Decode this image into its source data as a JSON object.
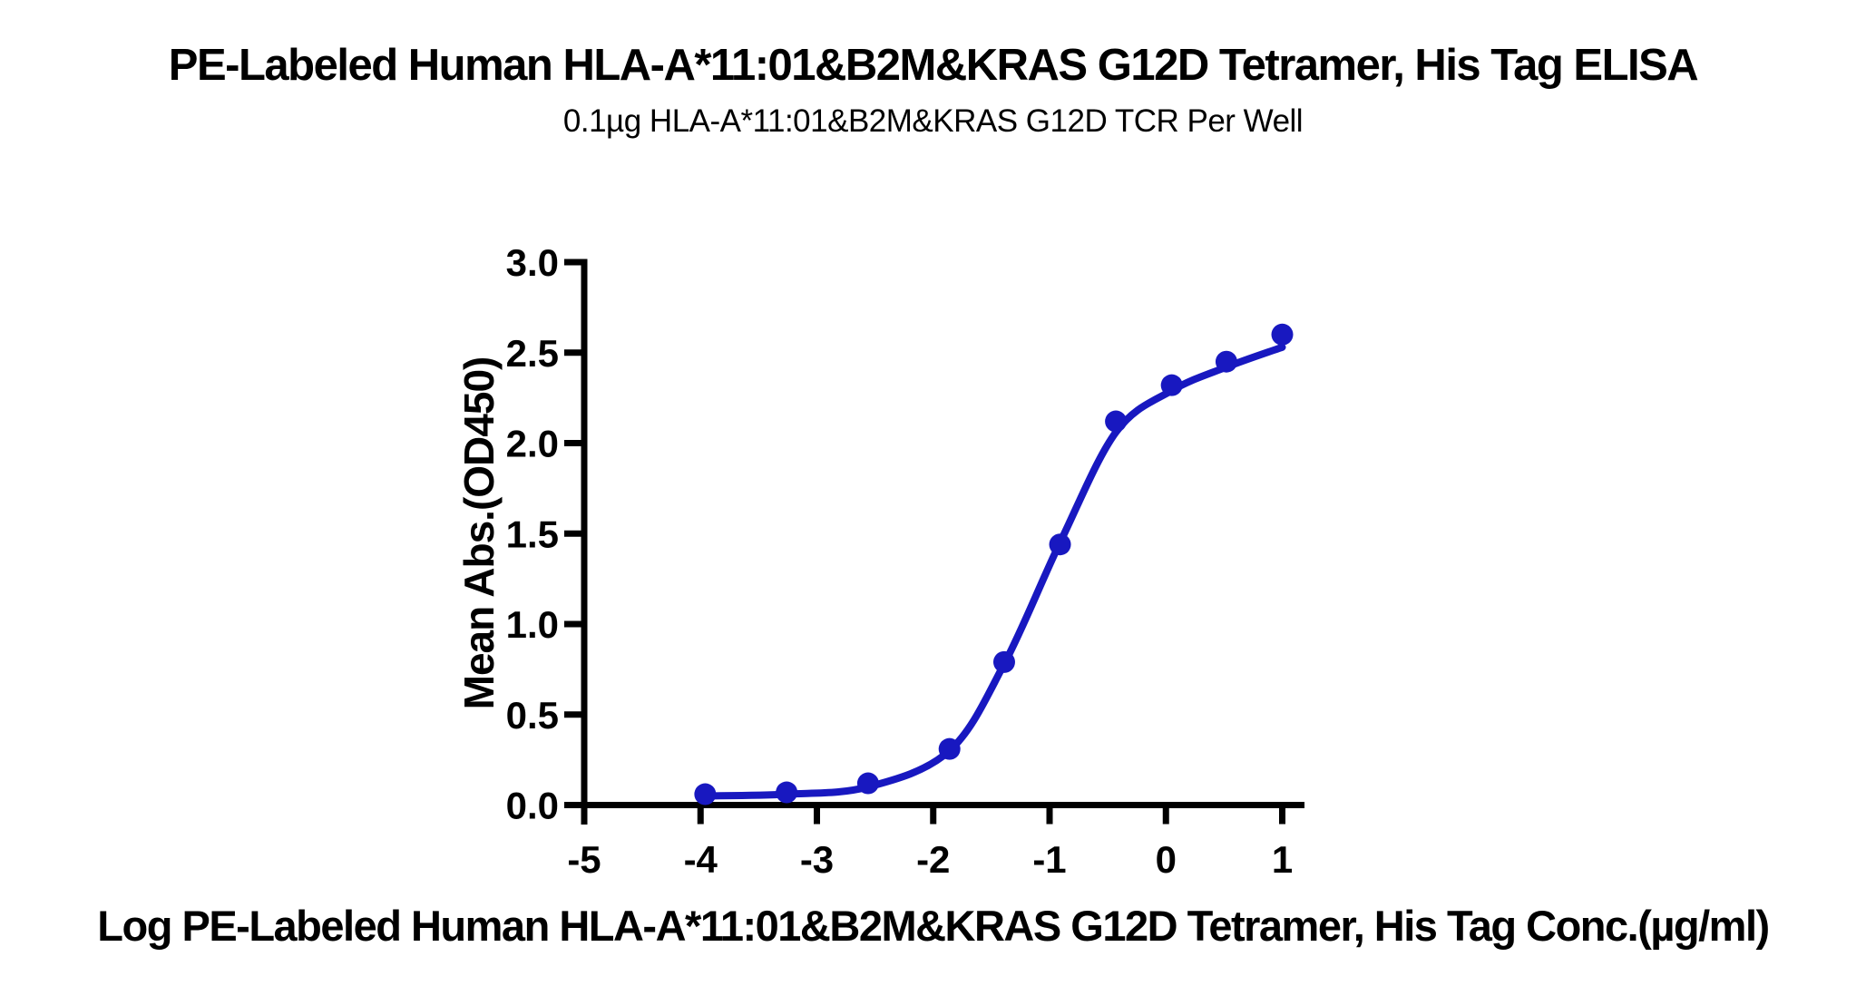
{
  "chart_data": {
    "type": "scatter",
    "title": "PE-Labeled Human HLA-A*11:01&B2M&KRAS G12D Tetramer, His Tag ELISA",
    "subtitle": "0.1µg HLA-A*11:01&B2M&KRAS G12D TCR Per Well",
    "xlabel": "Log PE-Labeled Human HLA-A*11:01&B2M&KRAS G12D Tetramer, His Tag Conc.(µg/ml)",
    "ylabel": "Mean Abs.(OD450)",
    "x": [
      -3.96,
      -3.26,
      -2.56,
      -1.86,
      -1.39,
      -0.91,
      -0.43,
      0.05,
      0.52,
      1.0
    ],
    "y": [
      0.06,
      0.07,
      0.12,
      0.31,
      0.79,
      1.44,
      2.12,
      2.32,
      2.45,
      2.6
    ],
    "fit_curve_points": [
      [
        -3.96,
        0.05
      ],
      [
        -3.26,
        0.06
      ],
      [
        -2.56,
        0.1
      ],
      [
        -1.86,
        0.3
      ],
      [
        -1.39,
        0.78
      ],
      [
        -0.91,
        1.45
      ],
      [
        -0.43,
        2.06
      ],
      [
        0.05,
        2.29
      ],
      [
        0.52,
        2.42
      ],
      [
        1.0,
        2.53
      ]
    ],
    "xticks": {
      "values": [
        -5,
        -4,
        -3,
        -2,
        -1,
        0,
        1
      ],
      "labels": [
        "-5",
        "-4",
        "-3",
        "-2",
        "-1",
        "0",
        "1"
      ]
    },
    "yticks": {
      "values": [
        0,
        0.5,
        1,
        1.5,
        2,
        2.5,
        3
      ],
      "labels": [
        "0.0",
        "0.5",
        "1.0",
        "1.5",
        "2.0",
        "2.5",
        "3.0"
      ]
    },
    "xlim": [
      -5,
      1
    ],
    "ylim": [
      0,
      3
    ],
    "grid": false,
    "legend": "none",
    "point_color": "#1818C0",
    "line_color": "#1818C0",
    "axis_color": "#000000",
    "background_color": "#FFFFFF"
  }
}
